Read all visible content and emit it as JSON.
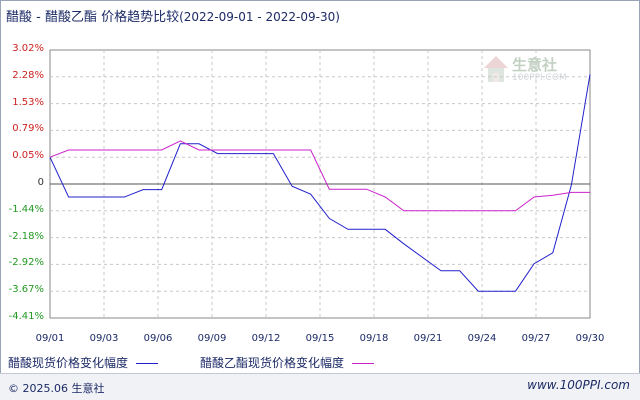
{
  "header": {
    "title_main": "醋酸 - 醋酸乙酯 价格趋势比较",
    "title_range": "(2022-09-01 - 2022-09-30)"
  },
  "watermark": {
    "name": "生意社",
    "url": "100PPI.COM"
  },
  "footer": {
    "left": "© 2025.06 生意社",
    "right": "www.100PPI.com"
  },
  "chart_data": {
    "type": "line",
    "title": "醋酸 - 醋酸乙酯 价格趋势比较",
    "subtitle": "(2022-09-01 - 2022-09-30)",
    "xlabel": "",
    "ylabel": "",
    "x_ticks": [
      "09/01",
      "09/03",
      "09/06",
      "09/09",
      "09/12",
      "09/15",
      "09/18",
      "09/21",
      "09/24",
      "09/27",
      "09/30"
    ],
    "y_ticks": [
      {
        "label": "3.02%",
        "value": 3.02
      },
      {
        "label": "2.28%",
        "value": 2.28
      },
      {
        "label": "1.53%",
        "value": 1.53
      },
      {
        "label": "0.79%",
        "value": 0.79
      },
      {
        "label": "0.05%",
        "value": 0.05
      },
      {
        "label": "0",
        "value": 0
      },
      {
        "label": "-1.44%",
        "value": -1.44
      },
      {
        "label": "-2.18%",
        "value": -2.18
      },
      {
        "label": "-2.92%",
        "value": -2.92
      },
      {
        "label": "-3.67%",
        "value": -3.67
      },
      {
        "label": "-4.41%",
        "value": -4.41
      }
    ],
    "ylim": [
      -4.41,
      3.02
    ],
    "grid": true,
    "legend_position": "bottom",
    "series": [
      {
        "name": "醋酸现货价格变化幅度",
        "color": "#2222cc",
        "points": [
          {
            "x": "2022-09-01",
            "y": 0.05
          },
          {
            "x": "2022-09-02",
            "y": -0.7
          },
          {
            "x": "2022-09-05",
            "y": -0.7
          },
          {
            "x": "2022-09-06",
            "y": -0.3
          },
          {
            "x": "2022-09-07",
            "y": -0.3
          },
          {
            "x": "2022-09-08",
            "y": 0.42
          },
          {
            "x": "2022-09-09",
            "y": 0.42
          },
          {
            "x": "2022-09-10",
            "y": 0.15
          },
          {
            "x": "2022-09-13",
            "y": 0.15
          },
          {
            "x": "2022-09-14",
            "y": -0.12
          },
          {
            "x": "2022-09-15",
            "y": -0.55
          },
          {
            "x": "2022-09-16",
            "y": -1.65
          },
          {
            "x": "2022-09-17",
            "y": -1.95
          },
          {
            "x": "2022-09-19",
            "y": -1.95
          },
          {
            "x": "2022-09-20",
            "y": -2.35
          },
          {
            "x": "2022-09-22",
            "y": -3.1
          },
          {
            "x": "2022-09-23",
            "y": -3.1
          },
          {
            "x": "2022-09-24",
            "y": -3.67
          },
          {
            "x": "2022-09-26",
            "y": -3.67
          },
          {
            "x": "2022-09-27",
            "y": -2.9
          },
          {
            "x": "2022-09-28",
            "y": -2.6
          },
          {
            "x": "2022-09-29",
            "y": -0.05
          },
          {
            "x": "2022-09-30",
            "y": 2.35
          }
        ]
      },
      {
        "name": "醋酸乙酯现货价格变化幅度",
        "color": "#cc22cc",
        "points": [
          {
            "x": "2022-09-01",
            "y": 0.05
          },
          {
            "x": "2022-09-02",
            "y": 0.25
          },
          {
            "x": "2022-09-07",
            "y": 0.25
          },
          {
            "x": "2022-09-08",
            "y": 0.5
          },
          {
            "x": "2022-09-09",
            "y": 0.25
          },
          {
            "x": "2022-09-10",
            "y": 0.25
          },
          {
            "x": "2022-09-15",
            "y": 0.25
          },
          {
            "x": "2022-09-16",
            "y": -0.28
          },
          {
            "x": "2022-09-18",
            "y": -0.28
          },
          {
            "x": "2022-09-19",
            "y": -0.7
          },
          {
            "x": "2022-09-20",
            "y": -1.44
          },
          {
            "x": "2022-09-24",
            "y": -1.44
          },
          {
            "x": "2022-09-26",
            "y": -1.44
          },
          {
            "x": "2022-09-27",
            "y": -0.7
          },
          {
            "x": "2022-09-28",
            "y": -0.6
          },
          {
            "x": "2022-09-29",
            "y": -0.45
          },
          {
            "x": "2022-09-30",
            "y": -0.45
          }
        ]
      }
    ]
  }
}
